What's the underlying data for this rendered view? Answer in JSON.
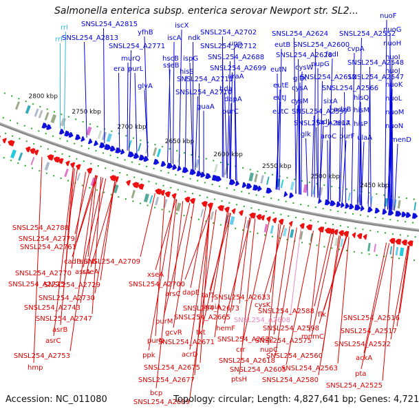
{
  "title": "Salmonella enterica subsp. enterica serovar Newport str. SL2...",
  "footer": {
    "accession": "Accession: NC_011080",
    "topology": "Topology: circular; Length: 4,827,641 bp; Genes: 4,721"
  },
  "colors": {
    "forward_label": "#0000dd",
    "reverse_label": "#dd0000",
    "rna_label": "#33bbdd",
    "pseudo_label": "#ee88bb",
    "forward_arrow": "#1010dd",
    "reverse_arrow": "#ee1111",
    "backbone": "#888888"
  },
  "kbp_marks": [
    "2800 kbp",
    "2750 kbp",
    "2700 kbp",
    "2650 kbp",
    "2600 kbp",
    "2550 kbp",
    "2500 kbp",
    "2450 kbp"
  ],
  "top_labels": [
    "rrl",
    "rrf",
    "SNSL254_A2815",
    "SNSL254_A2813",
    "yfhB",
    "SNSL254_A2771",
    "murQ",
    "era",
    "purL",
    "glyA",
    "iscX",
    "iscA",
    "ndk",
    "hscB",
    "ispG",
    "sseB",
    "hisS",
    "SNSL254_A2702",
    "SNSL254_A2712",
    "upp",
    "SNSL254_A2688",
    "SNSL254_A2699",
    "SNSL254_A2711",
    "uraA",
    "hda",
    "SNSL254_A2710",
    "dapA",
    "guaA",
    "purC",
    "SNSL254_A2624",
    "SNSL254_A2552",
    "eutB",
    "SNSL254_A2600",
    "eutN",
    "SNSL254_A2628",
    "fadI",
    "cvpA",
    "cysW",
    "nupG",
    "SNSL254_A2548",
    "eutE",
    "SNSL254_A2612",
    "SNSL254_A2547",
    "cysA",
    "SNSL254_A2566",
    "eutJ",
    "cysM",
    "gltX",
    "sixA",
    "hisQ",
    "eutC",
    "SNSL254_A2597",
    "pdxB",
    "hisM",
    "SNSL254_A2617",
    "fadJ",
    "truA",
    "hisP",
    "aroC",
    "glk",
    "purF",
    "ulaA",
    "nuoF",
    "nuoG",
    "nuoH",
    "nuoI",
    "nuoJ",
    "nuoK",
    "nuoL",
    "nuoM",
    "nuoN",
    "menD"
  ],
  "bottom_labels": [
    "SNSL254_A2788",
    "SNSL254_A2779",
    "SNSL254_A2761",
    "cadB",
    "suhB",
    "SNSL254_A2770",
    "asrA",
    "sseA",
    "SNSL254_A2775",
    "SNSL254_A2729",
    "SNSL254_A2730",
    "SNSL254_A2743",
    "SNSL254_A2747",
    "asrB",
    "asrC",
    "SNSL254_A2753",
    "hmp",
    "SNSL254_A2709",
    "xseA",
    "SNSL254_A2700",
    "arsC",
    "dapE",
    "tal1",
    "purM",
    "SNSL254_A2673",
    "SNSL254_A2665",
    "gcvR",
    "tkt",
    "purN",
    "SNSL254_A2671",
    "acrD",
    "ppk",
    "SNSL254_A2675",
    "SNSL254_A2677",
    "bcp",
    "SNSL254_A2689",
    "SNSL254_A2633",
    "amiA",
    "cysK",
    "hemF",
    "SNSL254_A2608",
    "SNSL254_A2588",
    "flk",
    "SNSL254_A2598",
    "mnmC",
    "SNSL254_A2622",
    "SNSL254_A2575",
    "crr",
    "nupC",
    "SNSL254_A2560",
    "SNSL254_A2618",
    "SNSL254_A2605",
    "SNSL254_A2563",
    "ptsH",
    "SNSL254_A2580",
    "SNSL254_A2516",
    "SNSL254_A2517",
    "SNSL254_A2522",
    "ackA",
    "pta",
    "SNSL254_A2525"
  ]
}
